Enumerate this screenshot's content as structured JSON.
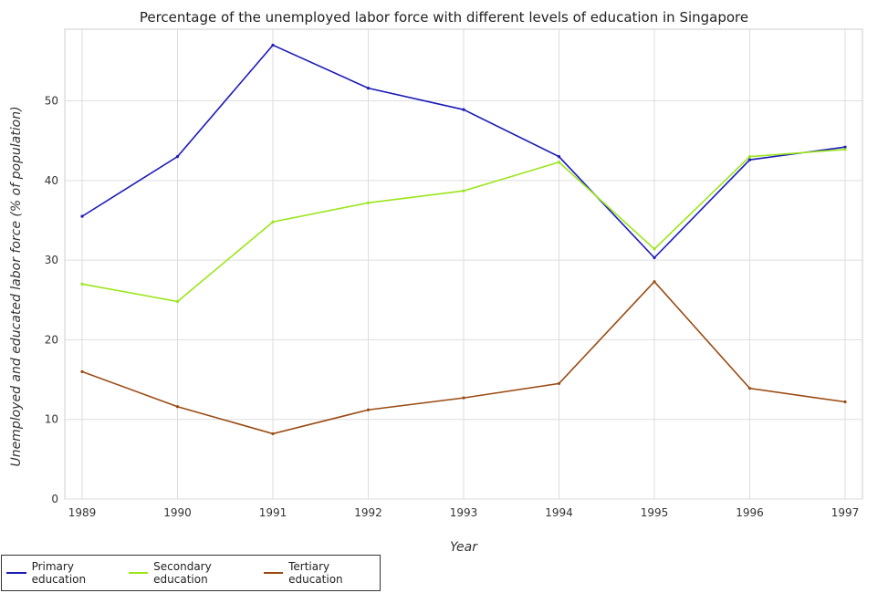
{
  "chart_data": {
    "type": "line",
    "title": "Percentage of the unemployed labor force with different levels of education in Singapore",
    "xlabel": "Year",
    "ylabel": "Unemployed and educated labor force (% of population)",
    "categories": [
      "1989",
      "1990",
      "1991",
      "1992",
      "1993",
      "1994",
      "1995",
      "1996",
      "1997"
    ],
    "ylim": [
      0,
      59
    ],
    "yticks": [
      0,
      10,
      20,
      30,
      40,
      50
    ],
    "grid": true,
    "legend_position": "bottom-left",
    "series": [
      {
        "name": "Primary education",
        "color": "#1a1ab8",
        "values": [
          35.5,
          43.0,
          57.0,
          51.6,
          48.9,
          43.0,
          30.3,
          42.6,
          44.2
        ]
      },
      {
        "name": "Secondary education",
        "color": "#9ae619",
        "values": [
          27.0,
          24.8,
          34.8,
          37.2,
          38.7,
          42.3,
          31.4,
          43.0,
          43.9
        ]
      },
      {
        "name": "Tertiary education",
        "color": "#9a4a12",
        "values": [
          16.0,
          11.6,
          8.2,
          11.2,
          12.7,
          14.5,
          27.3,
          13.9,
          12.2
        ]
      }
    ]
  }
}
